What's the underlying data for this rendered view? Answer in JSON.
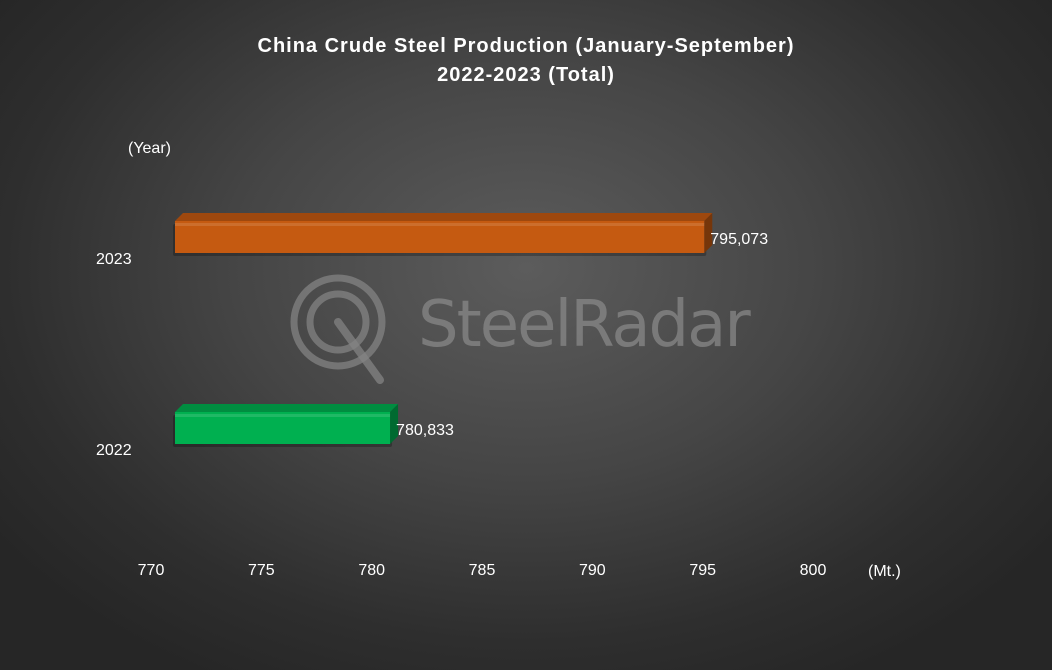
{
  "chart_data": {
    "type": "bar",
    "orientation": "horizontal",
    "title": [
      "China Crude Steel Production (January-September)",
      "2022-2023 (Total)"
    ],
    "ylabel": "(Year)",
    "xlabel": "(Mt.)",
    "categories": [
      "2023",
      "2022"
    ],
    "values": [
      795.073,
      780.833
    ],
    "data_labels": [
      "795,073",
      "780,833"
    ],
    "bar_colors": [
      "#c55a11",
      "#00b050"
    ],
    "xlim": [
      770,
      800
    ],
    "xticks": [
      "770",
      "775",
      "780",
      "785",
      "790",
      "795",
      "800"
    ],
    "grid": false,
    "legend": "none"
  },
  "watermark": {
    "text": "SteelRadar",
    "icon": "steelradar-logo-icon"
  }
}
